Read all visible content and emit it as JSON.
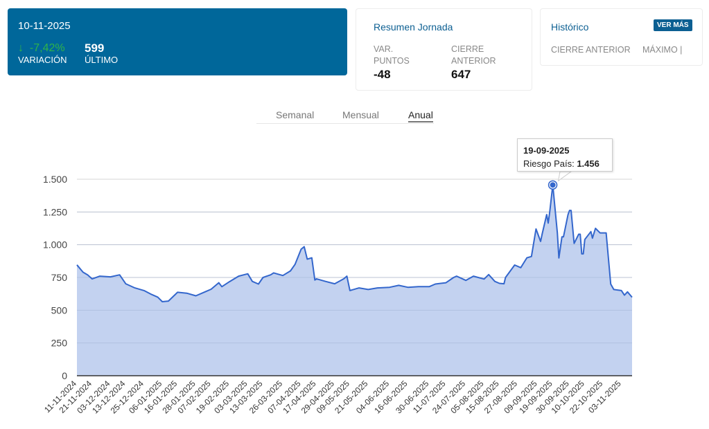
{
  "summary": {
    "date": "10-11-2025",
    "variation": "-7,42%",
    "variation_label": "VARIACIÓN",
    "last": "599",
    "last_label": "ÚLTIMO",
    "down_color": "#2fb34a",
    "brand_color": "#00679a"
  },
  "resumen": {
    "title": "Resumen Jornada",
    "var_label_1": "VAR.",
    "var_label_2": "PUNTOS",
    "var_value": "-48",
    "close_label_1": "CIERRE",
    "close_label_2": "ANTERIOR",
    "close_value": "647"
  },
  "historico": {
    "title": "Histórico",
    "button": "VER MÁS",
    "col1": "CIERRE ANTERIOR",
    "col2": "MÁXIMO |"
  },
  "tabs": [
    {
      "label": "Semanal",
      "active": false
    },
    {
      "label": "Mensual",
      "active": false
    },
    {
      "label": "Anual",
      "active": true
    }
  ],
  "tooltip": {
    "date": "19-09-2025",
    "series_label": "Riesgo País: ",
    "value": "1.456"
  },
  "chart_data": {
    "type": "area",
    "series_name": "Riesgo País",
    "line_color": "#3366cc",
    "fill_color": "#c3d2f0",
    "ylim": [
      0,
      1500
    ],
    "yticks": [
      0,
      250,
      500,
      750,
      1000,
      1250,
      1500
    ],
    "ytick_labels": [
      "0",
      "250",
      "500",
      "750",
      "1.000",
      "1.250",
      "1.500"
    ],
    "grid": true,
    "xtick_labels": [
      "11-11-2024",
      "21-11-2024",
      "03-12-2024",
      "13-12-2024",
      "25-12-2024",
      "06-01-2025",
      "16-01-2025",
      "28-01-2025",
      "07-02-2025",
      "19-02-2025",
      "03-03-2025",
      "13-03-2025",
      "26-03-2025",
      "07-04-2025",
      "17-04-2025",
      "29-04-2025",
      "09-05-2025",
      "21-05-2025",
      "04-06-2025",
      "16-06-2025",
      "30-06-2025",
      "11-07-2025",
      "24-07-2025",
      "05-08-2025",
      "15-08-2025",
      "27-08-2025",
      "09-09-2025",
      "19-09-2025",
      "30-09-2025",
      "10-10-2025",
      "22-10-2025",
      "03-11-2025"
    ],
    "points": [
      [
        "11-11-2024",
        846
      ],
      [
        "15-11-2024",
        790
      ],
      [
        "18-11-2024",
        770
      ],
      [
        "21-11-2024",
        739
      ],
      [
        "26-11-2024",
        760
      ],
      [
        "03-12-2024",
        755
      ],
      [
        "09-12-2024",
        770
      ],
      [
        "13-12-2024",
        702
      ],
      [
        "19-12-2024",
        670
      ],
      [
        "25-12-2024",
        650
      ],
      [
        "30-12-2024",
        620
      ],
      [
        "03-01-2025",
        600
      ],
      [
        "06-01-2025",
        565
      ],
      [
        "10-01-2025",
        570
      ],
      [
        "16-01-2025",
        637
      ],
      [
        "22-01-2025",
        630
      ],
      [
        "28-01-2025",
        610
      ],
      [
        "03-02-2025",
        640
      ],
      [
        "07-02-2025",
        660
      ],
      [
        "12-02-2025",
        710
      ],
      [
        "14-02-2025",
        680
      ],
      [
        "19-02-2025",
        718
      ],
      [
        "25-02-2025",
        760
      ],
      [
        "03-03-2025",
        778
      ],
      [
        "06-03-2025",
        720
      ],
      [
        "10-03-2025",
        700
      ],
      [
        "13-03-2025",
        750
      ],
      [
        "18-03-2025",
        770
      ],
      [
        "20-03-2025",
        785
      ],
      [
        "26-03-2025",
        765
      ],
      [
        "31-03-2025",
        800
      ],
      [
        "03-04-2025",
        850
      ],
      [
        "07-04-2025",
        966
      ],
      [
        "09-04-2025",
        985
      ],
      [
        "11-04-2025",
        890
      ],
      [
        "14-04-2025",
        900
      ],
      [
        "16-04-2025",
        730
      ],
      [
        "17-04-2025",
        740
      ],
      [
        "23-04-2025",
        720
      ],
      [
        "29-04-2025",
        702
      ],
      [
        "05-05-2025",
        740
      ],
      [
        "07-05-2025",
        760
      ],
      [
        "09-05-2025",
        650
      ],
      [
        "15-05-2025",
        670
      ],
      [
        "21-05-2025",
        658
      ],
      [
        "27-05-2025",
        670
      ],
      [
        "04-06-2025",
        675
      ],
      [
        "10-06-2025",
        690
      ],
      [
        "16-06-2025",
        675
      ],
      [
        "23-06-2025",
        680
      ],
      [
        "30-06-2025",
        680
      ],
      [
        "04-07-2025",
        700
      ],
      [
        "11-07-2025",
        710
      ],
      [
        "16-07-2025",
        750
      ],
      [
        "18-07-2025",
        760
      ],
      [
        "24-07-2025",
        728
      ],
      [
        "29-07-2025",
        760
      ],
      [
        "05-08-2025",
        738
      ],
      [
        "08-08-2025",
        772
      ],
      [
        "12-08-2025",
        720
      ],
      [
        "15-08-2025",
        705
      ],
      [
        "18-08-2025",
        702
      ],
      [
        "19-08-2025",
        750
      ],
      [
        "25-08-2025",
        845
      ],
      [
        "29-08-2025",
        825
      ],
      [
        "02-09-2025",
        900
      ],
      [
        "05-09-2025",
        910
      ],
      [
        "08-09-2025",
        1120
      ],
      [
        "11-09-2025",
        1025
      ],
      [
        "12-09-2025",
        1080
      ],
      [
        "15-09-2025",
        1230
      ],
      [
        "16-09-2025",
        1165
      ],
      [
        "17-09-2025",
        1250
      ],
      [
        "19-09-2025",
        1456
      ],
      [
        "22-09-2025",
        1090
      ],
      [
        "23-09-2025",
        899
      ],
      [
        "25-09-2025",
        1060
      ],
      [
        "26-09-2025",
        1060
      ],
      [
        "29-09-2025",
        1230
      ],
      [
        "30-09-2025",
        1262
      ],
      [
        "01-10-2025",
        1262
      ],
      [
        "03-10-2025",
        1010
      ],
      [
        "06-10-2025",
        1080
      ],
      [
        "07-10-2025",
        1080
      ],
      [
        "08-10-2025",
        930
      ],
      [
        "09-10-2025",
        930
      ],
      [
        "10-10-2025",
        1040
      ],
      [
        "14-10-2025",
        1100
      ],
      [
        "15-10-2025",
        1050
      ],
      [
        "17-10-2025",
        1125
      ],
      [
        "20-10-2025",
        1090
      ],
      [
        "24-10-2025",
        1090
      ],
      [
        "27-10-2025",
        700
      ],
      [
        "29-10-2025",
        658
      ],
      [
        "03-11-2025",
        650
      ],
      [
        "05-11-2025",
        615
      ],
      [
        "07-11-2025",
        640
      ],
      [
        "10-11-2025",
        599
      ]
    ],
    "highlight": [
      "19-09-2025",
      1456
    ]
  }
}
